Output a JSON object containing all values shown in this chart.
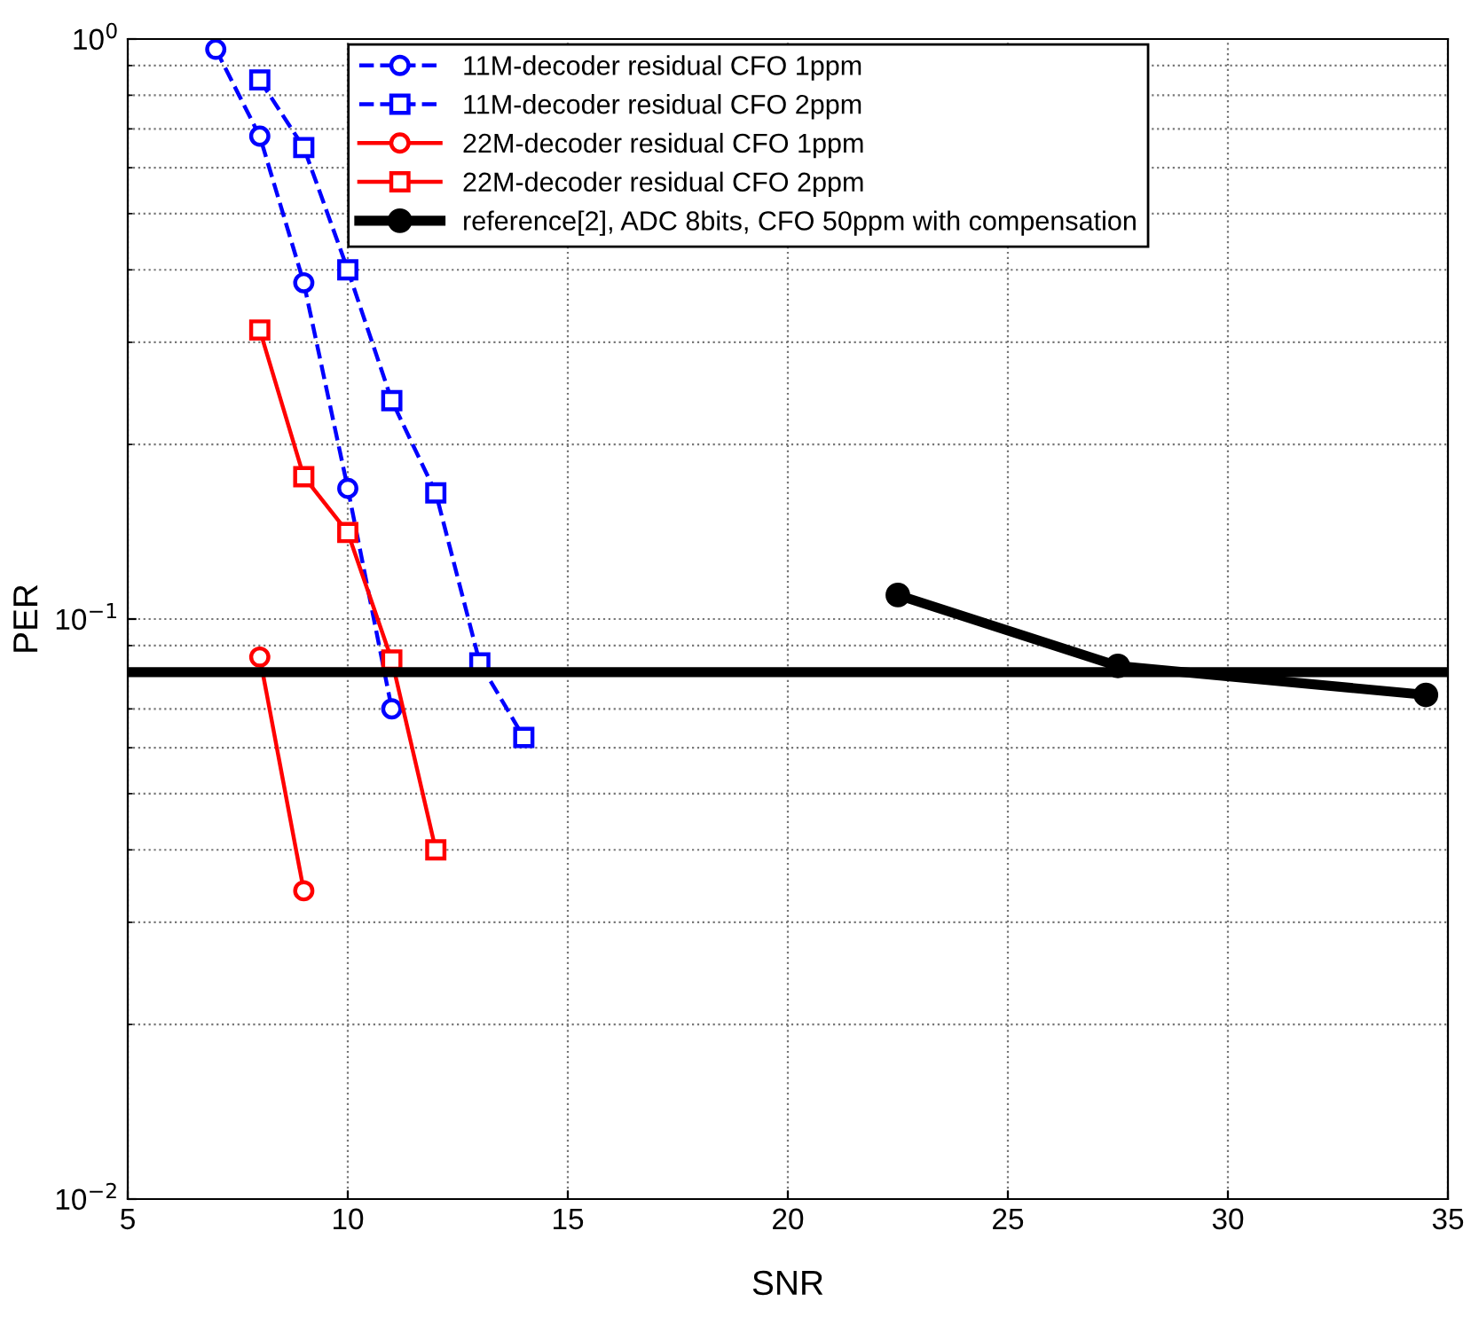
{
  "chart_data": {
    "type": "line",
    "xlabel": "SNR",
    "ylabel": "PER",
    "log": "y",
    "xlim": [
      5,
      35
    ],
    "xticks": [
      5,
      10,
      15,
      20,
      25,
      30,
      35
    ],
    "ylim": [
      0.01,
      1
    ],
    "yticks": [
      {
        "value": 0.01,
        "label": "10$^{−2}$"
      },
      {
        "value": 0.1,
        "label": "10$^{−1}$"
      },
      {
        "value": 1,
        "label": "10$^{0}$"
      }
    ],
    "grid": true,
    "legend": "top",
    "series": [
      {
        "name": "11M-decoder residual CFO 1ppm",
        "color": "#0000ff",
        "marker": "circle",
        "line_style": "dashed",
        "x": [
          7,
          8,
          9,
          10,
          11
        ],
        "values": [
          0.96,
          0.68,
          0.38,
          0.168,
          0.07
        ]
      },
      {
        "name": "11M-decoder residual CFO 2ppm",
        "color": "#0000ff",
        "marker": "square",
        "line_style": "dashed",
        "x": [
          8,
          9,
          10,
          11,
          12,
          13,
          14
        ],
        "values": [
          0.85,
          0.65,
          0.4,
          0.238,
          0.165,
          0.084,
          0.0625
        ]
      },
      {
        "name": "22M-decoder residual CFO 1ppm",
        "color": "#ff0000",
        "marker": "circle",
        "line_style": "solid",
        "x": [
          8,
          9
        ],
        "values": [
          0.086,
          0.034
        ]
      },
      {
        "name": "22M-decoder residual CFO 2ppm",
        "color": "#ff0000",
        "marker": "square",
        "line_style": "solid",
        "x": [
          8,
          9,
          10,
          11,
          12
        ],
        "values": [
          0.315,
          0.176,
          0.141,
          0.085,
          0.04
        ]
      },
      {
        "name": "reference[2], ADC 8bits, CFO 50ppm with compensation",
        "color": "#000000",
        "marker": "circle",
        "line_style": "solid",
        "x": [
          22.5,
          27.5,
          34.5
        ],
        "values": [
          0.11,
          0.083,
          0.074
        ]
      }
    ],
    "ref_lines": [
      {
        "axis": "y",
        "value": 0.081,
        "color": "#000000",
        "line_style": "solid"
      }
    ]
  }
}
